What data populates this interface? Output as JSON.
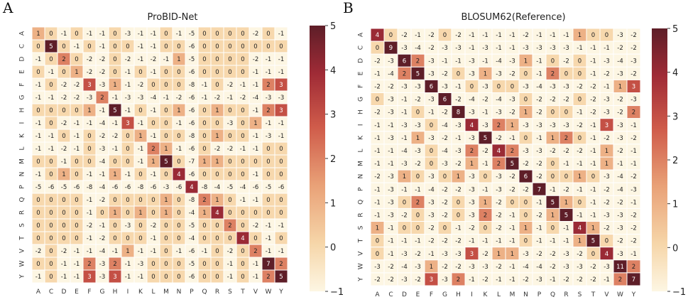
{
  "panels": [
    {
      "letter": "A",
      "title": "ProBID-Net"
    },
    {
      "letter": "B",
      "title": "BLOSUM62(Reference)"
    }
  ],
  "colors": {
    "low": "#fdf6e3",
    "stops": [
      "#fdf6e3",
      "#f6d6a9",
      "#e9a177",
      "#cf5b4a",
      "#9f2b36",
      "#5e1e28"
    ]
  },
  "chart_data": [
    {
      "type": "heatmap",
      "title": "ProBID-Net",
      "residues": [
        "A",
        "C",
        "D",
        "E",
        "F",
        "G",
        "H",
        "I",
        "K",
        "L",
        "M",
        "N",
        "P",
        "Q",
        "R",
        "S",
        "T",
        "V",
        "W",
        "Y"
      ],
      "colorbar": {
        "min": -1,
        "max": 5,
        "ticks": [
          5,
          4,
          3,
          2,
          1,
          0,
          -1
        ]
      },
      "matrix": [
        [
          1,
          0,
          -1,
          0,
          -1,
          -1,
          0,
          -3,
          -1,
          -1,
          0,
          -1,
          -5,
          0,
          0,
          0,
          0,
          -2,
          0,
          -1
        ],
        [
          0,
          5,
          0,
          -1,
          0,
          -1,
          0,
          0,
          -1,
          -1,
          0,
          0,
          -6,
          0,
          0,
          0,
          0,
          0,
          0,
          0
        ],
        [
          -1,
          0,
          2,
          0,
          -2,
          -2,
          0,
          -2,
          -1,
          -2,
          -1,
          1,
          -5,
          0,
          0,
          0,
          0,
          -2,
          -1,
          -1
        ],
        [
          0,
          -1,
          0,
          1,
          -2,
          -2,
          0,
          -1,
          0,
          -1,
          0,
          0,
          -6,
          0,
          0,
          0,
          0,
          -1,
          -1,
          -1
        ],
        [
          -1,
          0,
          -2,
          -2,
          3,
          -3,
          1,
          -1,
          -2,
          0,
          0,
          0,
          -8,
          -1,
          0,
          -2,
          -1,
          -1,
          2,
          3
        ],
        [
          -1,
          -1,
          -2,
          -2,
          -3,
          2,
          -1,
          -3,
          -3,
          -4,
          -1,
          -2,
          -6,
          -1,
          -2,
          -1,
          -2,
          -4,
          -3,
          -3
        ],
        [
          0,
          0,
          0,
          0,
          1,
          -1,
          5,
          -1,
          0,
          -1,
          0,
          1,
          -6,
          0,
          1,
          0,
          0,
          -1,
          2,
          3
        ],
        [
          -1,
          0,
          -2,
          -1,
          -1,
          -4,
          -1,
          3,
          -1,
          0,
          0,
          -1,
          -6,
          0,
          0,
          -3,
          0,
          1,
          -1,
          -1
        ],
        [
          -1,
          -1,
          0,
          -1,
          0,
          -2,
          -2,
          0,
          1,
          -1,
          0,
          0,
          -8,
          0,
          1,
          0,
          0,
          -1,
          -3,
          -1
        ],
        [
          -1,
          -1,
          -2,
          -1,
          0,
          -3,
          -1,
          0,
          -1,
          2,
          1,
          -1,
          -6,
          0,
          -2,
          -2,
          -1,
          -1,
          0,
          0
        ],
        [
          0,
          0,
          -1,
          0,
          0,
          -4,
          0,
          0,
          -1,
          1,
          5,
          0,
          -7,
          1,
          1,
          0,
          0,
          0,
          0,
          0
        ],
        [
          -1,
          0,
          1,
          0,
          -1,
          -1,
          1,
          -1,
          0,
          -1,
          0,
          4,
          -6,
          0,
          0,
          0,
          0,
          -1,
          0,
          0
        ],
        [
          -5,
          -6,
          -5,
          -6,
          -8,
          -4,
          -6,
          -6,
          -8,
          -6,
          -3,
          -6,
          4,
          -8,
          -4,
          -5,
          -4,
          -6,
          -5,
          -6
        ],
        [
          0,
          0,
          0,
          0,
          -1,
          -2,
          0,
          0,
          0,
          0,
          1,
          0,
          -8,
          2,
          1,
          0,
          -1,
          -1,
          0,
          0
        ],
        [
          0,
          0,
          0,
          0,
          -1,
          0,
          1,
          0,
          1,
          0,
          1,
          0,
          -4,
          1,
          4,
          0,
          0,
          0,
          0,
          0
        ],
        [
          0,
          0,
          0,
          0,
          -2,
          -1,
          0,
          -3,
          0,
          -2,
          0,
          0,
          -5,
          0,
          0,
          2,
          0,
          -2,
          -1,
          -1
        ],
        [
          0,
          0,
          0,
          0,
          -1,
          -2,
          0,
          0,
          0,
          -1,
          0,
          0,
          -4,
          0,
          0,
          0,
          4,
          0,
          -1,
          0
        ],
        [
          -2,
          0,
          -2,
          -1,
          -1,
          -4,
          -1,
          1,
          -1,
          -1,
          0,
          -1,
          -6,
          -1,
          0,
          -2,
          0,
          2,
          -1,
          -1
        ],
        [
          0,
          0,
          -1,
          -1,
          2,
          -3,
          2,
          -1,
          -3,
          0,
          0,
          0,
          -5,
          0,
          0,
          -1,
          0,
          -1,
          7,
          2
        ],
        [
          -1,
          0,
          -1,
          -1,
          3,
          -3,
          3,
          -1,
          -1,
          0,
          0,
          0,
          -6,
          0,
          0,
          -1,
          0,
          -1,
          2,
          5
        ]
      ]
    },
    {
      "type": "heatmap",
      "title": "BLOSUM62(Reference)",
      "residues": [
        "A",
        "C",
        "D",
        "E",
        "F",
        "G",
        "H",
        "I",
        "K",
        "L",
        "M",
        "N",
        "P",
        "Q",
        "R",
        "S",
        "T",
        "V",
        "W",
        "Y"
      ],
      "colorbar": {
        "min": -1,
        "max": 5,
        "ticks": [
          5,
          4,
          3,
          2,
          1,
          0,
          -1
        ]
      },
      "matrix": [
        [
          4,
          0,
          -2,
          -1,
          -2,
          0,
          -2,
          -1,
          -1,
          -1,
          -1,
          -2,
          -1,
          -1,
          -1,
          1,
          0,
          0,
          -3,
          -2
        ],
        [
          0,
          9,
          -3,
          -4,
          -2,
          -3,
          -3,
          -1,
          -3,
          -1,
          -1,
          -3,
          -3,
          -3,
          -3,
          -1,
          -1,
          -1,
          -2,
          -2
        ],
        [
          -2,
          -3,
          6,
          2,
          -3,
          -1,
          -1,
          -3,
          -1,
          -4,
          -3,
          1,
          -1,
          0,
          -2,
          0,
          -1,
          -3,
          -4,
          -3
        ],
        [
          -1,
          -4,
          2,
          5,
          -3,
          -2,
          0,
          -3,
          1,
          -3,
          -2,
          0,
          -1,
          2,
          0,
          0,
          -1,
          -2,
          -3,
          -2
        ],
        [
          -2,
          -2,
          -3,
          -3,
          6,
          -3,
          -1,
          0,
          -3,
          0,
          0,
          -3,
          -4,
          -3,
          -3,
          -2,
          -2,
          -1,
          1,
          3
        ],
        [
          0,
          -3,
          -1,
          -2,
          -3,
          6,
          -2,
          -4,
          -2,
          -4,
          -3,
          0,
          -2,
          -2,
          -2,
          0,
          -2,
          -3,
          -2,
          -3
        ],
        [
          -2,
          -3,
          -1,
          0,
          -1,
          -2,
          8,
          -3,
          -1,
          -3,
          -2,
          1,
          -2,
          0,
          0,
          -1,
          -2,
          -3,
          -2,
          2
        ],
        [
          -1,
          -1,
          -3,
          -3,
          0,
          -4,
          -3,
          4,
          -3,
          2,
          1,
          -3,
          -3,
          -3,
          -3,
          -2,
          -1,
          3,
          -3,
          -1
        ],
        [
          -1,
          -3,
          -1,
          1,
          -3,
          -2,
          -1,
          -3,
          5,
          -2,
          -1,
          0,
          -1,
          1,
          2,
          0,
          -1,
          -2,
          -3,
          -2
        ],
        [
          -1,
          -1,
          -4,
          -3,
          0,
          -4,
          -3,
          2,
          -2,
          4,
          2,
          -3,
          -3,
          -2,
          -2,
          -2,
          -1,
          1,
          -2,
          -1
        ],
        [
          -1,
          -1,
          -3,
          -2,
          0,
          -3,
          -2,
          1,
          -1,
          2,
          5,
          -2,
          -2,
          0,
          -1,
          -1,
          -1,
          1,
          -1,
          -1
        ],
        [
          -2,
          -3,
          1,
          0,
          -3,
          0,
          1,
          -3,
          0,
          -3,
          -2,
          6,
          -2,
          0,
          0,
          1,
          0,
          -3,
          -4,
          -2
        ],
        [
          -1,
          -3,
          -1,
          -1,
          -4,
          -2,
          -2,
          -3,
          -1,
          -3,
          -2,
          -2,
          7,
          -1,
          -2,
          -1,
          -1,
          -2,
          -4,
          -3
        ],
        [
          -1,
          -3,
          0,
          2,
          -3,
          -2,
          0,
          -3,
          1,
          -2,
          0,
          0,
          -1,
          5,
          1,
          0,
          -1,
          -2,
          -2,
          -1
        ],
        [
          -1,
          -3,
          -2,
          0,
          -3,
          -2,
          0,
          -3,
          2,
          -2,
          -1,
          0,
          -2,
          1,
          5,
          -1,
          -1,
          -3,
          -3,
          -2
        ],
        [
          1,
          -1,
          0,
          0,
          -2,
          0,
          -1,
          -2,
          0,
          -2,
          -1,
          1,
          -1,
          0,
          -1,
          4,
          1,
          -2,
          -3,
          -2
        ],
        [
          0,
          -1,
          -1,
          -1,
          -2,
          -2,
          -2,
          -1,
          -1,
          -1,
          -1,
          0,
          -1,
          -1,
          -1,
          1,
          5,
          0,
          -2,
          -2
        ],
        [
          0,
          -1,
          -3,
          -2,
          -1,
          -3,
          -3,
          3,
          -2,
          1,
          1,
          -3,
          -2,
          -2,
          -3,
          -2,
          0,
          4,
          -3,
          -1
        ],
        [
          -3,
          -2,
          -4,
          -3,
          1,
          -2,
          -2,
          -3,
          -3,
          -2,
          -1,
          -4,
          -4,
          -2,
          -3,
          -3,
          -2,
          -3,
          11,
          2
        ],
        [
          -2,
          -2,
          -3,
          -2,
          3,
          -3,
          2,
          -1,
          -2,
          -1,
          -1,
          -2,
          -3,
          -1,
          -2,
          -2,
          -2,
          -1,
          2,
          7
        ]
      ]
    }
  ]
}
